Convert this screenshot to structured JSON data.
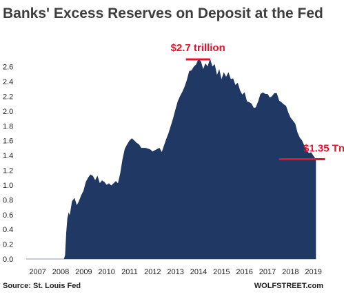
{
  "chart_data": {
    "type": "area",
    "title": "Banks' Excess Reserves on Deposit at the Fed",
    "xlabel": "",
    "ylabel": "",
    "xlim": [
      2007,
      2019.75
    ],
    "ylim": [
      0,
      2.7
    ],
    "x_ticks": [
      "2007",
      "2008",
      "2009",
      "2010",
      "2011",
      "2012",
      "2013",
      "2014",
      "2015",
      "2016",
      "2017",
      "2018",
      "2019"
    ],
    "y_ticks": [
      "0.0",
      "0.2",
      "0.4",
      "0.6",
      "0.8",
      "1.0",
      "1.2",
      "1.4",
      "1.6",
      "1.8",
      "2.0",
      "2.2",
      "2.4",
      "2.6"
    ],
    "grid": false,
    "legend": "none",
    "fill_color": "#1f3864",
    "annotation_color": "#e8102a",
    "series": [
      {
        "x": [
          2007.0,
          2008.5,
          2008.65,
          2008.7,
          2008.75,
          2008.8,
          2008.85,
          2008.9,
          2009.0,
          2009.1,
          2009.2,
          2009.3,
          2009.4,
          2009.5,
          2009.6,
          2009.7,
          2009.8,
          2009.9,
          2010.0,
          2010.1,
          2010.2,
          2010.3,
          2010.4,
          2010.5,
          2010.6,
          2010.7,
          2010.8,
          2010.9,
          2011.0,
          2011.1,
          2011.2,
          2011.3,
          2011.4,
          2011.5,
          2011.6,
          2011.7,
          2011.8,
          2011.9,
          2012.0,
          2012.2,
          2012.4,
          2012.5,
          2012.6,
          2012.8,
          2012.9,
          2013.0,
          2013.1,
          2013.2,
          2013.3,
          2013.4,
          2013.5,
          2013.6,
          2013.7,
          2013.8,
          2013.9,
          2014.0,
          2014.1,
          2014.2,
          2014.3,
          2014.4,
          2014.5,
          2014.6,
          2014.7,
          2014.8,
          2014.9,
          2015.0,
          2015.1,
          2015.2,
          2015.3,
          2015.4,
          2015.5,
          2015.6,
          2015.7,
          2015.8,
          2015.9,
          2016.0,
          2016.1,
          2016.2,
          2016.3,
          2016.4,
          2016.5,
          2016.6,
          2016.7,
          2016.8,
          2016.9,
          2017.0,
          2017.1,
          2017.2,
          2017.3,
          2017.4,
          2017.5,
          2017.6,
          2017.7,
          2017.8,
          2017.9,
          2018.0,
          2018.1,
          2018.2,
          2018.3,
          2018.4,
          2018.5,
          2018.6,
          2018.7,
          2018.8,
          2018.9,
          2019.0,
          2019.1,
          2019.2,
          2019.3,
          2019.4,
          2019.5,
          2019.6
        ],
        "y": [
          0.0,
          0.0,
          0.0,
          0.05,
          0.35,
          0.55,
          0.62,
          0.58,
          0.78,
          0.82,
          0.72,
          0.78,
          0.86,
          0.92,
          1.04,
          1.1,
          1.14,
          1.12,
          1.06,
          1.12,
          1.02,
          1.06,
          1.04,
          1.0,
          1.02,
          0.99,
          1.02,
          1.05,
          1.02,
          1.16,
          1.35,
          1.49,
          1.55,
          1.6,
          1.63,
          1.6,
          1.57,
          1.55,
          1.5,
          1.5,
          1.48,
          1.45,
          1.47,
          1.5,
          1.44,
          1.53,
          1.62,
          1.7,
          1.8,
          1.9,
          2.02,
          2.13,
          2.2,
          2.26,
          2.33,
          2.42,
          2.54,
          2.55,
          2.6,
          2.63,
          2.7,
          2.67,
          2.56,
          2.64,
          2.6,
          2.7,
          2.6,
          2.63,
          2.48,
          2.56,
          2.42,
          2.52,
          2.46,
          2.52,
          2.43,
          2.44,
          2.35,
          2.38,
          2.28,
          2.22,
          2.25,
          2.13,
          2.12,
          2.1,
          2.04,
          2.05,
          2.13,
          2.23,
          2.25,
          2.23,
          2.23,
          2.18,
          2.2,
          2.24,
          2.24,
          2.14,
          2.12,
          2.09,
          2.07,
          1.98,
          1.91,
          1.87,
          1.83,
          1.71,
          1.64,
          1.6,
          1.53,
          1.47,
          1.43,
          1.44,
          1.39,
          1.35
        ]
      }
    ],
    "annotations": [
      {
        "text": "$2.7 trillion",
        "x": [
          2013.95,
          2015.0
        ],
        "y": 2.7
      },
      {
        "text": "$1.35 Tn",
        "x": [
          2018.0,
          2020.0
        ],
        "y": 1.35
      }
    ]
  },
  "footer": {
    "source": "Source: St. Louis Fed",
    "brand": "WOLFSTREET.com"
  }
}
